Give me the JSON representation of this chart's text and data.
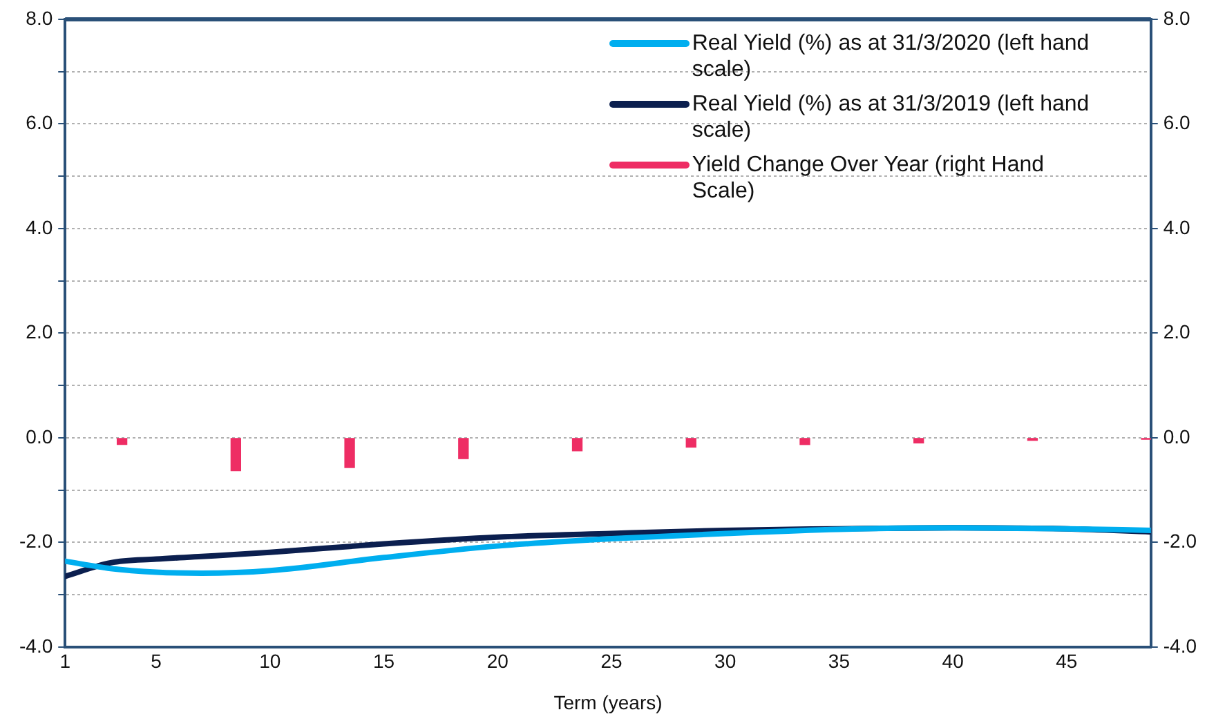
{
  "chart_data": {
    "type": "line",
    "xlabel": "Term (years)",
    "x": [
      1,
      3,
      5,
      7,
      10,
      15,
      20,
      25,
      30,
      35,
      40,
      45,
      48.7
    ],
    "series": [
      {
        "name": "Real Yield (%) as at 31/3/2020 (left hand scale)",
        "color": "#00aeef",
        "values": [
          -2.36,
          -2.5,
          -2.57,
          -2.59,
          -2.54,
          -2.29,
          -2.07,
          -1.93,
          -1.83,
          -1.75,
          -1.72,
          -1.74,
          -1.77
        ]
      },
      {
        "name": "Real Yield (%) as at 31/3/2019 (left hand scale)",
        "color": "#0b1f4f",
        "values": [
          -2.65,
          -2.39,
          -2.32,
          -2.27,
          -2.19,
          -2.03,
          -1.9,
          -1.83,
          -1.77,
          -1.74,
          -1.72,
          -1.74,
          -1.8
        ]
      },
      {
        "name": "Yield Change Over Year (right Hand Scale)",
        "color": "#ee2d64",
        "type": "bar",
        "axis": "y2",
        "x": [
          3.5,
          8.5,
          13.5,
          18.5,
          23.5,
          28.5,
          33.5,
          38.5,
          43.5,
          48.5
        ],
        "values": [
          -0.13,
          -0.63,
          -0.57,
          -0.4,
          -0.25,
          -0.18,
          -0.13,
          -0.1,
          -0.05,
          -0.03
        ]
      }
    ],
    "xlim": [
      1,
      48.7
    ],
    "xticks": [
      1,
      5,
      10,
      15,
      20,
      25,
      30,
      35,
      40,
      45
    ],
    "ylim": [
      -4,
      8
    ],
    "yticks": [
      {
        "value": -4,
        "label": "-4.0"
      },
      {
        "value": -3,
        "label": null
      },
      {
        "value": -2,
        "label": "-2.0"
      },
      {
        "value": -1,
        "label": null
      },
      {
        "value": 0,
        "label": "0.0"
      },
      {
        "value": 1,
        "label": null
      },
      {
        "value": 2,
        "label": "2.0"
      },
      {
        "value": 3,
        "label": null
      },
      {
        "value": 4,
        "label": "4.0"
      },
      {
        "value": 5,
        "label": null
      },
      {
        "value": 6,
        "label": "6.0"
      },
      {
        "value": 7,
        "label": null
      },
      {
        "value": 8,
        "label": "8.0"
      }
    ],
    "y2lim": [
      -4,
      8
    ],
    "y2ticks": [
      {
        "value": -4,
        "label": "-4.0"
      },
      {
        "value": -2,
        "label": "-2.0"
      },
      {
        "value": 0,
        "label": "0.0"
      },
      {
        "value": 2,
        "label": "2.0"
      },
      {
        "value": 4,
        "label": "4.0"
      },
      {
        "value": 6,
        "label": "6.0"
      },
      {
        "value": 8,
        "label": "8.0"
      }
    ],
    "grid": "y",
    "legend": "top right",
    "marker": "none",
    "line_style": "solid"
  }
}
